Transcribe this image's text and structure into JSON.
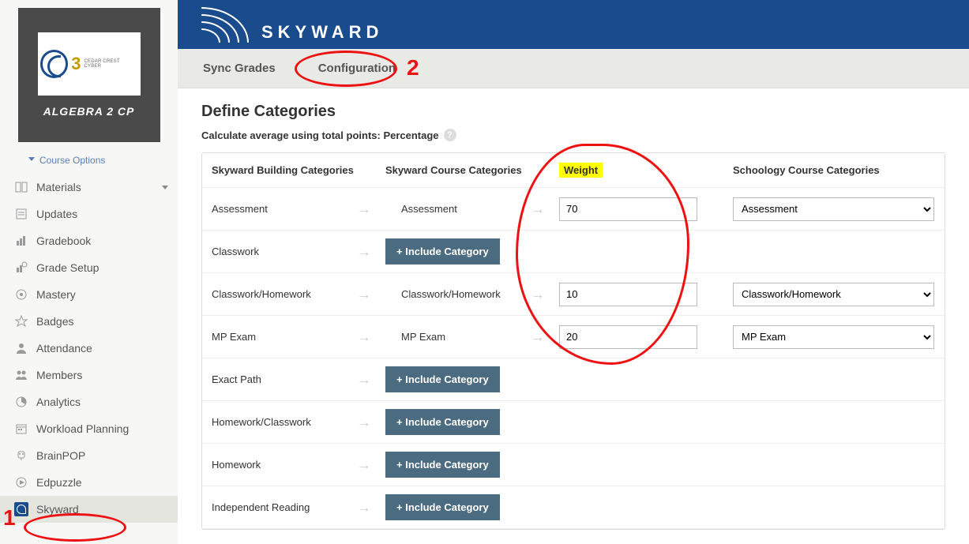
{
  "course": {
    "name": "ALGEBRA 2 CP",
    "badge_text": "CEDAR CREST CYBER",
    "badge_number": "3"
  },
  "course_options_label": "Course Options",
  "sidebar": {
    "items": [
      {
        "label": "Materials",
        "icon": "materials-icon",
        "has_submenu": true
      },
      {
        "label": "Updates",
        "icon": "updates-icon"
      },
      {
        "label": "Gradebook",
        "icon": "gradebook-icon"
      },
      {
        "label": "Grade Setup",
        "icon": "grade-setup-icon"
      },
      {
        "label": "Mastery",
        "icon": "mastery-icon"
      },
      {
        "label": "Badges",
        "icon": "badges-icon"
      },
      {
        "label": "Attendance",
        "icon": "attendance-icon"
      },
      {
        "label": "Members",
        "icon": "members-icon"
      },
      {
        "label": "Analytics",
        "icon": "analytics-icon"
      },
      {
        "label": "Workload Planning",
        "icon": "workload-icon"
      },
      {
        "label": "BrainPOP",
        "icon": "brainpop-icon"
      },
      {
        "label": "Edpuzzle",
        "icon": "edpuzzle-icon"
      },
      {
        "label": "Skyward",
        "icon": "skyward-icon",
        "active": true
      }
    ]
  },
  "banner": {
    "brand": "SKYWARD"
  },
  "tabs": [
    {
      "label": "Sync Grades",
      "active": false
    },
    {
      "label": "Configuration",
      "active": true
    }
  ],
  "page": {
    "title": "Define Categories",
    "subtitle": "Calculate average using total points: Percentage"
  },
  "table": {
    "headers": {
      "building": "Skyward Building Categories",
      "course": "Skyward Course Categories",
      "weight": "Weight",
      "schoology": "Schoology Course Categories"
    },
    "include_btn": "+  Include Category",
    "rows": [
      {
        "building": "Assessment",
        "course": "Assessment",
        "weight": "70",
        "schoology": "Assessment"
      },
      {
        "building": "Classwork",
        "include": true
      },
      {
        "building": "Classwork/Homework",
        "course": "Classwork/Homework",
        "weight": "10",
        "schoology": "Classwork/Homework"
      },
      {
        "building": "MP Exam",
        "course": "MP Exam",
        "weight": "20",
        "schoology": "MP Exam"
      },
      {
        "building": "Exact Path",
        "include": true
      },
      {
        "building": "Homework/Classwork",
        "include": true
      },
      {
        "building": "Homework",
        "include": true
      },
      {
        "building": "Independent Reading",
        "include": true
      }
    ]
  },
  "annotations": {
    "one": "1",
    "two": "2"
  }
}
